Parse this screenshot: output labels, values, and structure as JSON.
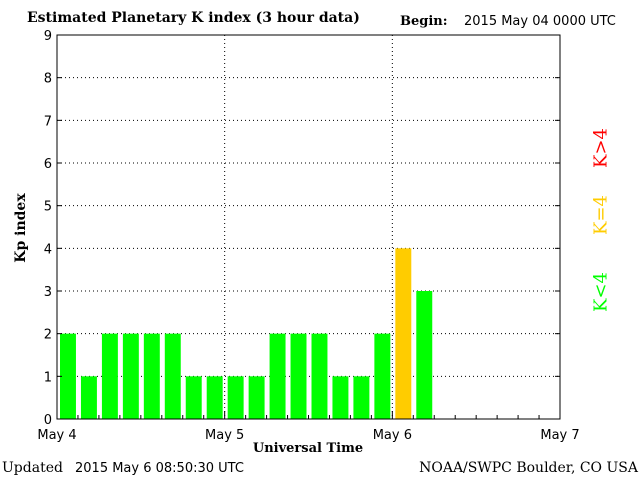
{
  "header": {
    "title": "Estimated Planetary K index (3 hour data)",
    "begin_label": "Begin:",
    "begin_value": "2015 May 04 0000 UTC"
  },
  "footer": {
    "updated_label": "Updated",
    "updated_value": "2015 May  6 08:50:30 UTC",
    "source": "NOAA/SWPC Boulder, CO USA"
  },
  "legend": {
    "below": {
      "label": "K<4",
      "color": "#00ff00"
    },
    "equal": {
      "label": "K=4",
      "color": "#ffcc00"
    },
    "above": {
      "label": "K>4",
      "color": "#ff0000"
    }
  },
  "chart_data": {
    "type": "bar",
    "title": "Estimated Planetary K index (3 hour data)",
    "xlabel": "Universal Time",
    "ylabel": "Kp index",
    "ylim": [
      0,
      9
    ],
    "yticks": [
      "0",
      "1",
      "2",
      "3",
      "4",
      "5",
      "6",
      "7",
      "8",
      "9"
    ],
    "xticks": [
      "May 4",
      "May 5",
      "May 6",
      "May 7"
    ],
    "interval_hours": 3,
    "x_range_days": 3,
    "grid": true,
    "legend_position": "right",
    "values": [
      2,
      1,
      2,
      2,
      2,
      2,
      1,
      1,
      1,
      1,
      2,
      2,
      2,
      1,
      1,
      2,
      4,
      3
    ],
    "colors": {
      "below": "#00ff00",
      "equal": "#ffcc00",
      "above": "#ff0000"
    }
  }
}
